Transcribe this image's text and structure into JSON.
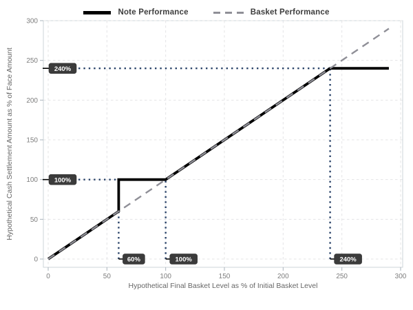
{
  "chart_data": {
    "type": "line",
    "title": "",
    "xlabel": "Hypothetical Final Basket Level as % of Initial Basket Level",
    "ylabel": "Hypothetical Cash Settlement Amount as % of Face Amount",
    "xlim": [
      0,
      300
    ],
    "ylim": [
      0,
      300
    ],
    "xticks": [
      0,
      50,
      100,
      150,
      200,
      250,
      300
    ],
    "yticks": [
      0,
      50,
      100,
      150,
      200,
      250,
      300
    ],
    "grid": true,
    "legend_position": "top-center",
    "series": [
      {
        "name": "Note Performance",
        "style": "solid",
        "points": [
          [
            0,
            0
          ],
          [
            60,
            60
          ],
          [
            60,
            100
          ],
          [
            100,
            100
          ],
          [
            240,
            240
          ],
          [
            290,
            240
          ]
        ]
      },
      {
        "name": "Basket Performance",
        "style": "dashed",
        "points": [
          [
            0,
            0
          ],
          [
            290,
            290
          ]
        ]
      }
    ],
    "annotations": {
      "guide_lines": [
        {
          "orient": "h",
          "y": 240,
          "to_x": 240
        },
        {
          "orient": "h",
          "y": 100,
          "to_x": 60
        },
        {
          "orient": "v",
          "x": 60,
          "to_y": 100
        },
        {
          "orient": "v",
          "x": 100,
          "to_y": 100
        },
        {
          "orient": "v",
          "x": 240,
          "to_y": 240
        }
      ],
      "badges": [
        {
          "label": "240%",
          "axis": "y",
          "value": 240
        },
        {
          "label": "100%",
          "axis": "y",
          "value": 100
        },
        {
          "label": "60%",
          "axis": "x",
          "value": 60
        },
        {
          "label": "100%",
          "axis": "x",
          "value": 100
        },
        {
          "label": "240%",
          "axis": "x",
          "value": 240
        }
      ]
    },
    "colors": {
      "note": "#000000",
      "basket": "#8f8f97",
      "guide": "#2a4369",
      "badge_bg": "#3b3b3b",
      "badge_text": "#ffffff",
      "grid": "#e4e4e6",
      "panel_border": "#ccd4da",
      "tick": "#aab4bc",
      "tick_label": "#7d7d7d",
      "axis_title": "#666666",
      "legend_text": "#3d3d3d"
    }
  }
}
